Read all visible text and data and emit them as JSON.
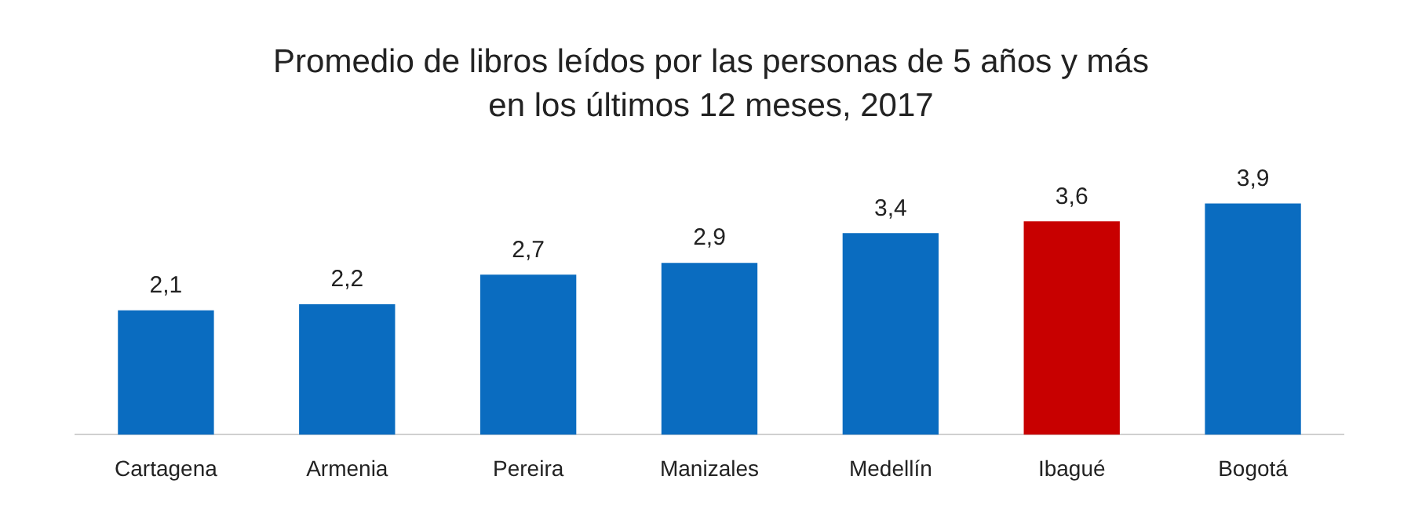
{
  "chart_data": {
    "type": "bar",
    "title": "Promedio de libros leídos por las personas de 5 años y más en los últimos 12 meses, 2017",
    "categories": [
      "Cartagena",
      "Armenia",
      "Pereira",
      "Manizales",
      "Medellín",
      "Ibagué",
      "Bogotá"
    ],
    "values": [
      2.1,
      2.2,
      2.7,
      2.9,
      3.4,
      3.6,
      3.9
    ],
    "colors": [
      "#0a6cc0",
      "#0a6cc0",
      "#0a6cc0",
      "#0a6cc0",
      "#0a6cc0",
      "#c80000",
      "#0a6cc0"
    ],
    "value_labels": [
      "2,1",
      "2,2",
      "2,7",
      "2,9",
      "3,4",
      "3,6",
      "3,9"
    ],
    "grid": false,
    "legend": false
  }
}
